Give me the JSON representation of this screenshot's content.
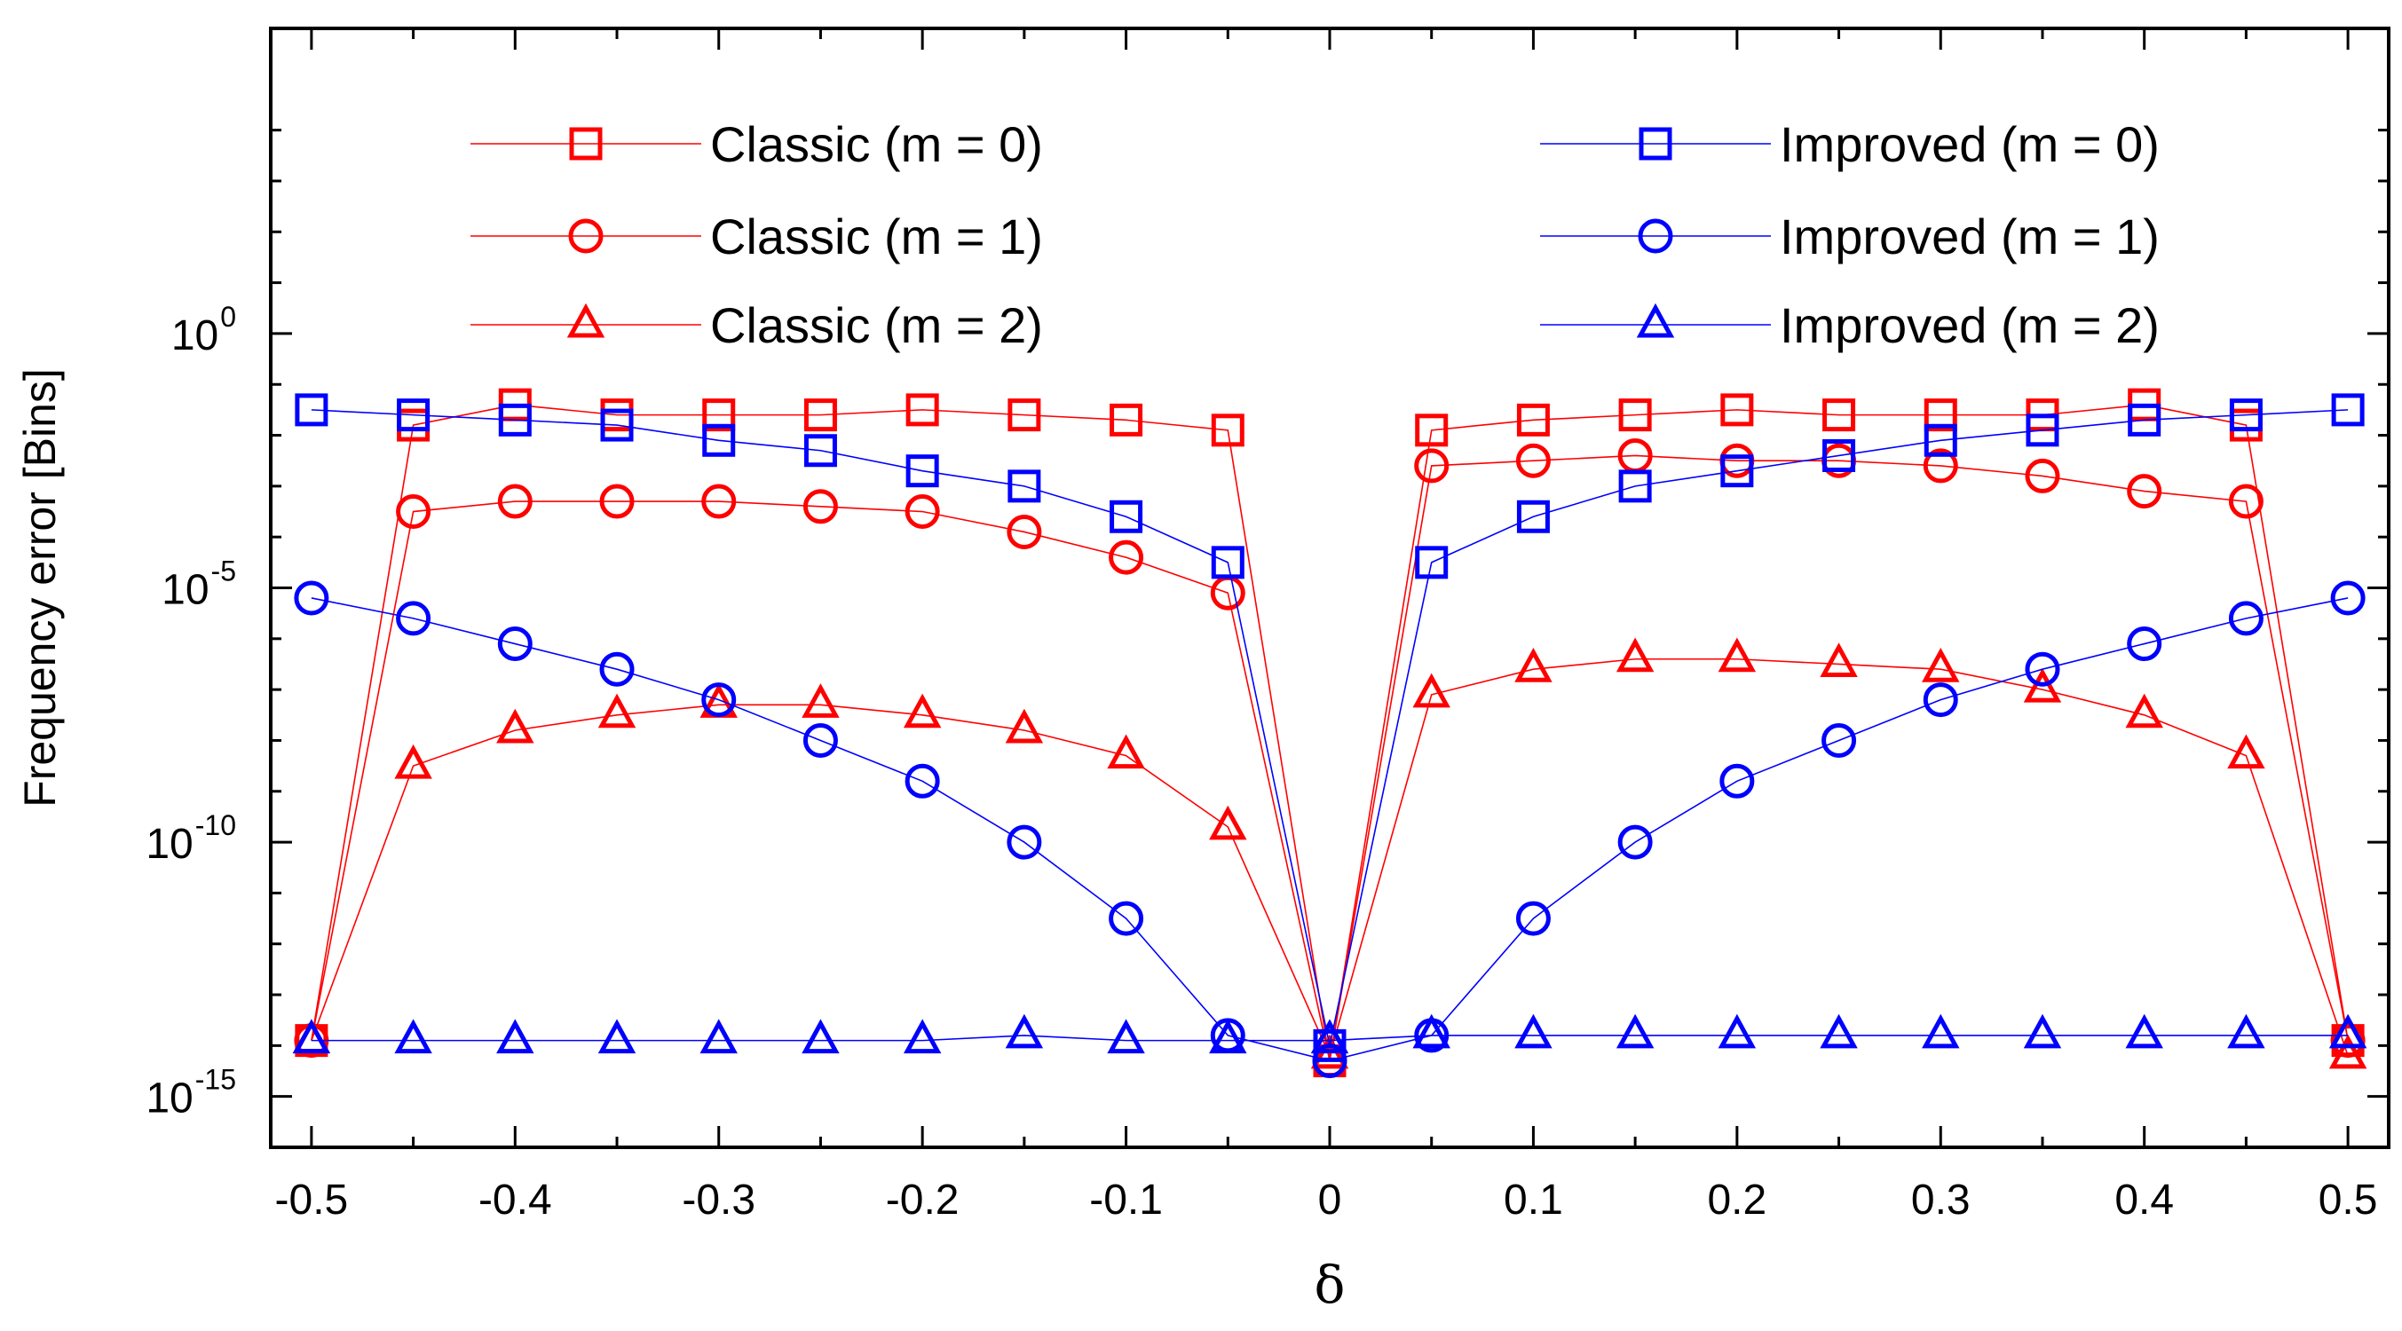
{
  "chart_data": {
    "type": "line",
    "title": "",
    "xlabel": "δ",
    "ylabel": "Frequency error [Bins]",
    "yscale": "log",
    "xlim": [
      -0.52,
      0.52
    ],
    "ylim_exp": [
      -16,
      6
    ],
    "x": [
      -0.5,
      -0.45,
      -0.4,
      -0.35,
      -0.3,
      -0.25,
      -0.2,
      -0.15,
      -0.1,
      -0.05,
      0,
      0.05,
      0.1,
      0.15,
      0.2,
      0.25,
      0.3,
      0.35,
      0.4,
      0.45,
      0.5
    ],
    "x_ticks": [
      -0.5,
      -0.4,
      -0.3,
      -0.2,
      -0.1,
      0,
      0.1,
      0.2,
      0.3,
      0.4,
      0.5
    ],
    "x_tick_labels": [
      "-0.5",
      "-0.4",
      "-0.3",
      "-0.2",
      "-0.1",
      "0",
      "0.1",
      "0.2",
      "0.3",
      "0.4",
      "0.5"
    ],
    "y_ticks": [
      {
        "exponent": 0,
        "base": "10",
        "exp_label": "0"
      },
      {
        "exponent": -5,
        "base": "10",
        "exp_label": "-5"
      },
      {
        "exponent": -10,
        "base": "10",
        "exp_label": "-10"
      },
      {
        "exponent": -15,
        "base": "10",
        "exp_label": "-15"
      }
    ],
    "note": "values are log10 of frequency error",
    "series": [
      {
        "name": "Classic (m = 0)",
        "color": "#ff0000",
        "marker": "square",
        "log10_values": [
          -13.9,
          -1.8,
          -1.4,
          -1.6,
          -1.6,
          -1.6,
          -1.5,
          -1.6,
          -1.7,
          -1.9,
          -14.3,
          -1.9,
          -1.7,
          -1.6,
          -1.5,
          -1.6,
          -1.6,
          -1.6,
          -1.4,
          -1.8,
          -13.9
        ]
      },
      {
        "name": "Classic (m = 1)",
        "color": "#ff0000",
        "marker": "circle",
        "log10_values": [
          -13.9,
          -3.5,
          -3.3,
          -3.3,
          -3.3,
          -3.4,
          -3.5,
          -3.9,
          -4.4,
          -5.1,
          -14.3,
          -2.6,
          -2.5,
          -2.4,
          -2.5,
          -2.5,
          -2.6,
          -2.8,
          -3.1,
          -3.3,
          -13.9
        ]
      },
      {
        "name": "Classic (m = 2)",
        "color": "#ff0000",
        "marker": "triangle",
        "log10_values": [
          -13.9,
          -8.5,
          -7.8,
          -7.5,
          -7.3,
          -7.3,
          -7.5,
          -7.8,
          -8.3,
          -9.7,
          -14.2,
          -7.1,
          -6.6,
          -6.4,
          -6.4,
          -6.5,
          -6.6,
          -7.0,
          -7.5,
          -8.3,
          -14.2
        ]
      },
      {
        "name": "Improved (m = 0)",
        "color": "#0000ff",
        "marker": "square",
        "log10_values": [
          -1.5,
          -1.6,
          -1.7,
          -1.8,
          -2.1,
          -2.3,
          -2.7,
          -3.0,
          -3.6,
          -4.5,
          -14.0,
          -4.5,
          -3.6,
          -3.0,
          -2.7,
          -2.4,
          -2.1,
          -1.9,
          -1.7,
          -1.6,
          -1.5
        ]
      },
      {
        "name": "Improved (m = 1)",
        "color": "#0000ff",
        "marker": "circle",
        "log10_values": [
          -5.2,
          -5.6,
          -6.1,
          -6.6,
          -7.2,
          -8.0,
          -8.8,
          -10.0,
          -11.5,
          -13.8,
          -14.3,
          -13.8,
          -11.5,
          -10.0,
          -8.8,
          -8.0,
          -7.2,
          -6.6,
          -6.1,
          -5.6,
          -5.2
        ]
      },
      {
        "name": "Improved (m = 2)",
        "color": "#0000ff",
        "marker": "triangle",
        "log10_values": [
          -13.9,
          -13.9,
          -13.9,
          -13.9,
          -13.9,
          -13.9,
          -13.9,
          -13.8,
          -13.9,
          -13.9,
          -13.9,
          -13.8,
          -13.8,
          -13.8,
          -13.8,
          -13.8,
          -13.8,
          -13.8,
          -13.8,
          -13.8,
          -13.8
        ]
      }
    ],
    "legend": {
      "placement": "top",
      "columns": 2
    }
  }
}
